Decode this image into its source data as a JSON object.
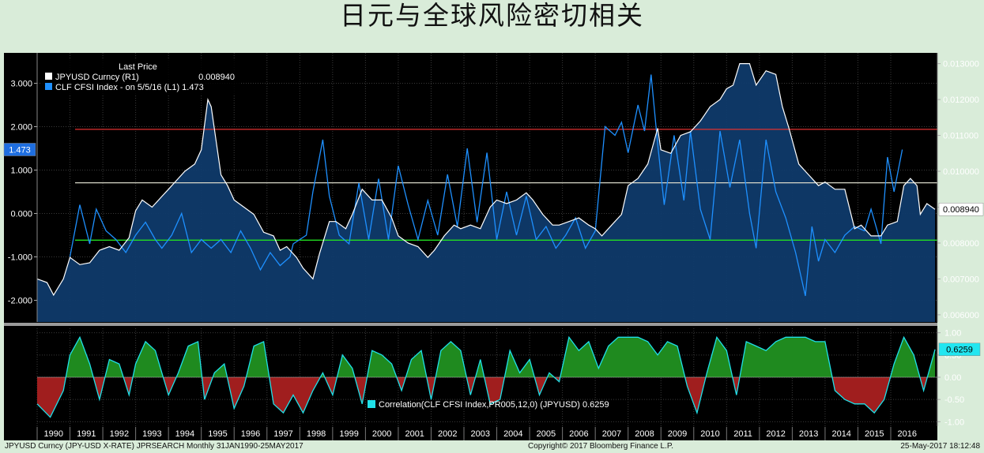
{
  "title": "日元与全球风险密切相关",
  "chart_data": [
    {
      "type": "line",
      "legend": {
        "header": "Last Price",
        "entries": [
          {
            "label": "JPYUSD Curncy  (R1)",
            "value": "0.008940",
            "color": "#ffffff"
          },
          {
            "label": "CLF CFSI Index -  on 5/5/16  (L1) 1.473",
            "value": "",
            "color": "#1e90ff"
          }
        ]
      },
      "left_axis": {
        "ticks": [
          "3.000",
          "2.000",
          "1.000",
          "0.000",
          "-1.000",
          "-2.000"
        ],
        "tick_values": [
          3,
          2,
          1,
          0,
          -1,
          -2
        ],
        "ylim": [
          -2.5,
          3.7
        ],
        "last_label": "1.473",
        "last_value": 1.473
      },
      "right_axis": {
        "ticks": [
          "0.013000",
          "0.012000",
          "0.011000",
          "0.010000",
          "0.009000",
          "0.008000",
          "0.007000",
          "0.006000"
        ],
        "tick_values": [
          0.013,
          0.012,
          0.011,
          0.01,
          0.009,
          0.008,
          0.007,
          0.006
        ],
        "ylim": [
          0.0058,
          0.0133
        ],
        "last_label": "0.008940",
        "last_value": 0.00894
      },
      "reference_lines": [
        {
          "value": 0.01117,
          "axis": "right",
          "color": "#e03030"
        },
        {
          "value": 0.00968,
          "axis": "right",
          "color": "#d8d8c8"
        },
        {
          "value": 0.00808,
          "axis": "right",
          "color": "#22dd22"
        }
      ],
      "series": [
        {
          "name": "JPYUSD Curncy",
          "axis": "right",
          "color": "#ffffff",
          "x": [
            1990.0,
            1990.3,
            1990.5,
            1990.8,
            1991.0,
            1991.3,
            1991.6,
            1991.9,
            1992.2,
            1992.5,
            1992.8,
            1993.0,
            1993.2,
            1993.5,
            1993.8,
            1994.0,
            1994.3,
            1994.5,
            1994.8,
            1995.0,
            1995.2,
            1995.3,
            1995.6,
            1995.8,
            1996.0,
            1996.3,
            1996.6,
            1996.9,
            1997.2,
            1997.4,
            1997.6,
            1997.9,
            1998.1,
            1998.4,
            1998.6,
            1998.9,
            1999.1,
            1999.4,
            1999.6,
            1999.9,
            2000.2,
            2000.5,
            2000.8,
            2001.0,
            2001.3,
            2001.6,
            2001.9,
            2002.1,
            2002.4,
            2002.7,
            2002.9,
            2003.2,
            2003.5,
            2003.8,
            2004.0,
            2004.3,
            2004.6,
            2004.9,
            2005.1,
            2005.4,
            2005.7,
            2005.9,
            2006.2,
            2006.5,
            2006.8,
            2007.0,
            2007.2,
            2007.5,
            2007.8,
            2008.0,
            2008.3,
            2008.6,
            2008.9,
            2009.0,
            2009.3,
            2009.6,
            2009.9,
            2010.2,
            2010.5,
            2010.8,
            2011.0,
            2011.2,
            2011.4,
            2011.7,
            2011.9,
            2012.2,
            2012.5,
            2012.7,
            2012.9,
            2013.2,
            2013.5,
            2013.8,
            2014.0,
            2014.3,
            2014.6,
            2014.9,
            2015.1,
            2015.4,
            2015.7,
            2015.9,
            2016.2,
            2016.4,
            2016.6,
            2016.8,
            2016.9,
            2017.1,
            2017.35
          ],
          "y": [
            0.007,
            0.0069,
            0.00655,
            0.007,
            0.0076,
            0.0074,
            0.00745,
            0.0078,
            0.0079,
            0.0078,
            0.00815,
            0.0089,
            0.0092,
            0.009,
            0.0093,
            0.0095,
            0.0098,
            0.01,
            0.0102,
            0.0106,
            0.012,
            0.0118,
            0.0099,
            0.0096,
            0.0092,
            0.009,
            0.0088,
            0.0083,
            0.0082,
            0.0078,
            0.0079,
            0.0076,
            0.0073,
            0.007,
            0.0077,
            0.0086,
            0.0086,
            0.0084,
            0.0088,
            0.0095,
            0.0092,
            0.0092,
            0.0087,
            0.0082,
            0.008,
            0.0079,
            0.0076,
            0.0078,
            0.0082,
            0.0085,
            0.0084,
            0.0085,
            0.0084,
            0.009,
            0.0092,
            0.0091,
            0.0092,
            0.0094,
            0.0092,
            0.0088,
            0.0085,
            0.0085,
            0.0086,
            0.0087,
            0.0085,
            0.0084,
            0.0082,
            0.0085,
            0.0088,
            0.0096,
            0.0098,
            0.0102,
            0.0112,
            0.0106,
            0.0105,
            0.011,
            0.0111,
            0.0114,
            0.0118,
            0.012,
            0.0123,
            0.0124,
            0.013,
            0.013,
            0.0124,
            0.0128,
            0.0127,
            0.0118,
            0.0112,
            0.0102,
            0.0099,
            0.0096,
            0.0097,
            0.0095,
            0.0095,
            0.0084,
            0.0085,
            0.0082,
            0.0082,
            0.0085,
            0.0086,
            0.0096,
            0.0098,
            0.0096,
            0.0088,
            0.0091,
            0.00894
          ]
        },
        {
          "name": "CLF CFSI Index",
          "axis": "left",
          "color": "#1e90ff",
          "x": [
            1991.0,
            1991.3,
            1991.6,
            1991.8,
            1992.1,
            1992.4,
            1992.7,
            1993.0,
            1993.3,
            1993.6,
            1993.8,
            1994.1,
            1994.4,
            1994.7,
            1995.0,
            1995.3,
            1995.6,
            1995.9,
            1996.2,
            1996.5,
            1996.8,
            1997.1,
            1997.4,
            1997.7,
            1997.8,
            1998.0,
            1998.2,
            1998.4,
            1998.7,
            1998.9,
            1999.2,
            1999.5,
            1999.8,
            2000.1,
            2000.4,
            2000.7,
            2001.0,
            2001.3,
            2001.6,
            2001.9,
            2002.2,
            2002.5,
            2002.8,
            2003.1,
            2003.4,
            2003.7,
            2004.0,
            2004.3,
            2004.6,
            2004.9,
            2005.2,
            2005.5,
            2005.8,
            2006.1,
            2006.4,
            2006.7,
            2007.0,
            2007.3,
            2007.6,
            2007.8,
            2008.0,
            2008.3,
            2008.5,
            2008.7,
            2008.9,
            2009.1,
            2009.4,
            2009.7,
            2009.9,
            2010.2,
            2010.5,
            2010.8,
            2011.1,
            2011.4,
            2011.7,
            2011.9,
            2012.2,
            2012.5,
            2012.8,
            2013.1,
            2013.4,
            2013.6,
            2013.8,
            2014.0,
            2014.3,
            2014.6,
            2014.9,
            2015.2,
            2015.4,
            2015.7,
            2015.9,
            2016.1,
            2016.35
          ],
          "y": [
            -1.0,
            0.2,
            -0.7,
            0.1,
            -0.4,
            -0.6,
            -0.9,
            -0.5,
            -0.2,
            -0.6,
            -0.8,
            -0.5,
            0.0,
            -0.9,
            -0.6,
            -0.8,
            -0.6,
            -0.9,
            -0.4,
            -0.8,
            -1.3,
            -0.9,
            -1.2,
            -1.0,
            -0.7,
            -0.6,
            -0.5,
            0.5,
            1.7,
            0.4,
            -0.5,
            -0.7,
            0.7,
            -0.6,
            0.8,
            -0.6,
            1.1,
            0.2,
            -0.6,
            0.3,
            -0.5,
            0.9,
            -0.3,
            1.5,
            -0.2,
            1.4,
            -0.6,
            0.5,
            -0.5,
            0.4,
            -0.6,
            -0.3,
            -0.8,
            -0.5,
            -0.1,
            -0.8,
            -0.4,
            2.0,
            1.8,
            2.1,
            1.4,
            2.5,
            1.9,
            3.2,
            1.6,
            0.2,
            1.8,
            0.3,
            1.9,
            0.1,
            -0.6,
            1.9,
            0.6,
            1.7,
            0.0,
            -0.8,
            1.7,
            0.5,
            -0.1,
            -0.9,
            -1.9,
            -0.3,
            -1.1,
            -0.6,
            -0.9,
            -0.5,
            -0.3,
            -0.4,
            0.1,
            -0.7,
            1.3,
            0.5,
            1.473
          ]
        }
      ]
    },
    {
      "type": "area",
      "legend": {
        "label": "Correlation(CLF CFSI Index,PR005,12,0) (JPYUSD) 0.6259",
        "color": "#1fe0e8"
      },
      "right_axis": {
        "ticks": [
          "1.00",
          "0.50",
          "0.00",
          "-0.50",
          "-1.00"
        ],
        "tick_values": [
          1,
          0.5,
          0,
          -0.5,
          -1
        ],
        "ylim": [
          -1.1,
          1.1
        ],
        "last_label": "0.6259",
        "last_value": 0.6259
      },
      "series": [
        {
          "name": "Correlation",
          "color": "#1fe0e8",
          "x": [
            1990.0,
            1990.4,
            1990.8,
            1991.0,
            1991.3,
            1991.6,
            1991.9,
            1992.2,
            1992.5,
            1992.8,
            1993.0,
            1993.3,
            1993.6,
            1993.8,
            1994.0,
            1994.3,
            1994.6,
            1994.9,
            1995.1,
            1995.4,
            1995.7,
            1996.0,
            1996.3,
            1996.6,
            1996.9,
            1997.2,
            1997.5,
            1997.8,
            1998.1,
            1998.4,
            1998.7,
            1999.0,
            1999.3,
            1999.6,
            1999.9,
            2000.2,
            2000.5,
            2000.8,
            2001.1,
            2001.4,
            2001.7,
            2002.0,
            2002.3,
            2002.6,
            2002.9,
            2003.2,
            2003.5,
            2003.8,
            2004.1,
            2004.4,
            2004.7,
            2005.0,
            2005.3,
            2005.6,
            2005.9,
            2006.2,
            2006.5,
            2006.8,
            2007.1,
            2007.4,
            2007.7,
            2008.0,
            2008.3,
            2008.6,
            2008.9,
            2009.2,
            2009.5,
            2009.8,
            2010.1,
            2010.4,
            2010.7,
            2011.0,
            2011.3,
            2011.6,
            2011.9,
            2012.2,
            2012.5,
            2012.8,
            2013.1,
            2013.4,
            2013.7,
            2014.0,
            2014.3,
            2014.6,
            2014.9,
            2015.2,
            2015.5,
            2015.8,
            2016.1,
            2016.4,
            2016.7,
            2017.0,
            2017.35
          ],
          "y": [
            -0.6,
            -0.9,
            -0.3,
            0.5,
            0.9,
            0.3,
            -0.5,
            0.4,
            0.3,
            -0.4,
            0.3,
            0.8,
            0.6,
            0.1,
            -0.4,
            0.1,
            0.7,
            0.8,
            -0.5,
            0.1,
            0.3,
            -0.7,
            -0.2,
            0.7,
            0.8,
            -0.6,
            -0.8,
            -0.4,
            -0.8,
            -0.3,
            0.1,
            -0.4,
            0.5,
            0.2,
            -0.6,
            0.6,
            0.5,
            0.3,
            -0.3,
            0.4,
            0.6,
            -0.5,
            0.6,
            0.8,
            0.6,
            -0.4,
            0.4,
            -0.6,
            -0.5,
            0.6,
            0.1,
            0.4,
            -0.4,
            0.1,
            -0.1,
            0.9,
            0.6,
            0.8,
            0.2,
            0.7,
            0.9,
            0.9,
            0.9,
            0.8,
            0.5,
            0.8,
            0.7,
            -0.2,
            -0.8,
            0.1,
            0.9,
            0.6,
            -0.4,
            0.8,
            0.7,
            0.6,
            0.8,
            0.9,
            0.9,
            0.9,
            0.8,
            0.8,
            -0.3,
            -0.5,
            -0.6,
            -0.6,
            -0.8,
            -0.5,
            0.3,
            0.9,
            0.5,
            -0.3,
            0.6259
          ]
        }
      ]
    }
  ],
  "x_axis": {
    "labels": [
      "1990",
      "1991",
      "1992",
      "1993",
      "1994",
      "1995",
      "1996",
      "1997",
      "1998",
      "1999",
      "2000",
      "2001",
      "2002",
      "2003",
      "2004",
      "2005",
      "2006",
      "2007",
      "2008",
      "2009",
      "2010",
      "2011",
      "2012",
      "2013",
      "2014",
      "2015",
      "2016"
    ],
    "xlim": [
      1990.0,
      2017.42
    ]
  },
  "footer": {
    "left": "JPYUSD Curncy (JPY-USD X-RATE) JPRSEARCH  Monthly 31JAN1990-25MAY2017",
    "center": "Copyright© 2017 Bloomberg Finance L.P.",
    "right": "25-May-2017 18:12:48"
  },
  "colors": {
    "background": "#000000",
    "frame": "#d9ecd9",
    "upper_fill": "#0f3a6a",
    "pos_fill": "#1f8a1f",
    "neg_fill": "#a01e1e",
    "grid": "#3a3a3a"
  }
}
